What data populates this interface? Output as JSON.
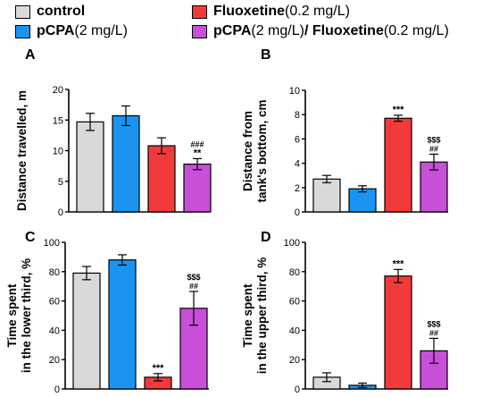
{
  "legend": [
    {
      "bold": "control",
      "rest": "",
      "color": "#d9d9d9"
    },
    {
      "bold": "pCPA",
      "rest": " (2 mg/L)",
      "color": "#1a94f0"
    },
    {
      "bold": "Fluoxetine",
      "rest": " (0.2 mg/L)",
      "color": "#f23a3a"
    },
    {
      "bold": "pCPA",
      "rest": "(2 mg/L)",
      "bold2": "/ Fluoxetine",
      "rest2": " (0.2 mg/L)",
      "color": "#c84fd8"
    }
  ],
  "chart_data": [
    {
      "type": "bar",
      "panel": "A",
      "ylabel": [
        "Distance travelled, m"
      ],
      "ylim": [
        0,
        20
      ],
      "yticks": [
        0,
        5,
        10,
        15,
        20
      ],
      "values": [
        14.7,
        15.7,
        10.8,
        7.8
      ],
      "errors": [
        1.4,
        1.6,
        1.3,
        0.9
      ],
      "annotations": [
        [],
        [],
        [],
        [
          "###",
          "**"
        ]
      ]
    },
    {
      "type": "bar",
      "panel": "B",
      "ylabel": [
        "Distance from",
        "tank's bottom, cm"
      ],
      "ylim": [
        0,
        10
      ],
      "yticks": [
        0,
        2,
        4,
        6,
        8,
        10
      ],
      "values": [
        2.7,
        1.9,
        7.7,
        4.1
      ],
      "errors": [
        0.3,
        0.25,
        0.25,
        0.65
      ],
      "annotations": [
        [],
        [],
        [
          "***"
        ],
        [
          "$$$",
          "##"
        ]
      ]
    },
    {
      "type": "bar",
      "panel": "C",
      "ylabel": [
        "Time spent",
        "in the lower third, %"
      ],
      "ylim": [
        0,
        100
      ],
      "yticks": [
        0,
        20,
        40,
        60,
        80,
        100
      ],
      "values": [
        79,
        88,
        8,
        55
      ],
      "errors": [
        4.5,
        3.5,
        2.5,
        11.5
      ],
      "annotations": [
        [],
        [],
        [
          "***"
        ],
        [
          "$$$",
          "##"
        ]
      ]
    },
    {
      "type": "bar",
      "panel": "D",
      "ylabel": [
        "Time spent",
        "in the upper third, %"
      ],
      "ylim": [
        0,
        100
      ],
      "yticks": [
        0,
        20,
        40,
        60,
        80,
        100
      ],
      "values": [
        8,
        2.5,
        77,
        26
      ],
      "errors": [
        3,
        1.5,
        4.5,
        8.5
      ],
      "annotations": [
        [],
        [],
        [
          "***"
        ],
        [
          "$$$",
          "##"
        ]
      ]
    }
  ]
}
